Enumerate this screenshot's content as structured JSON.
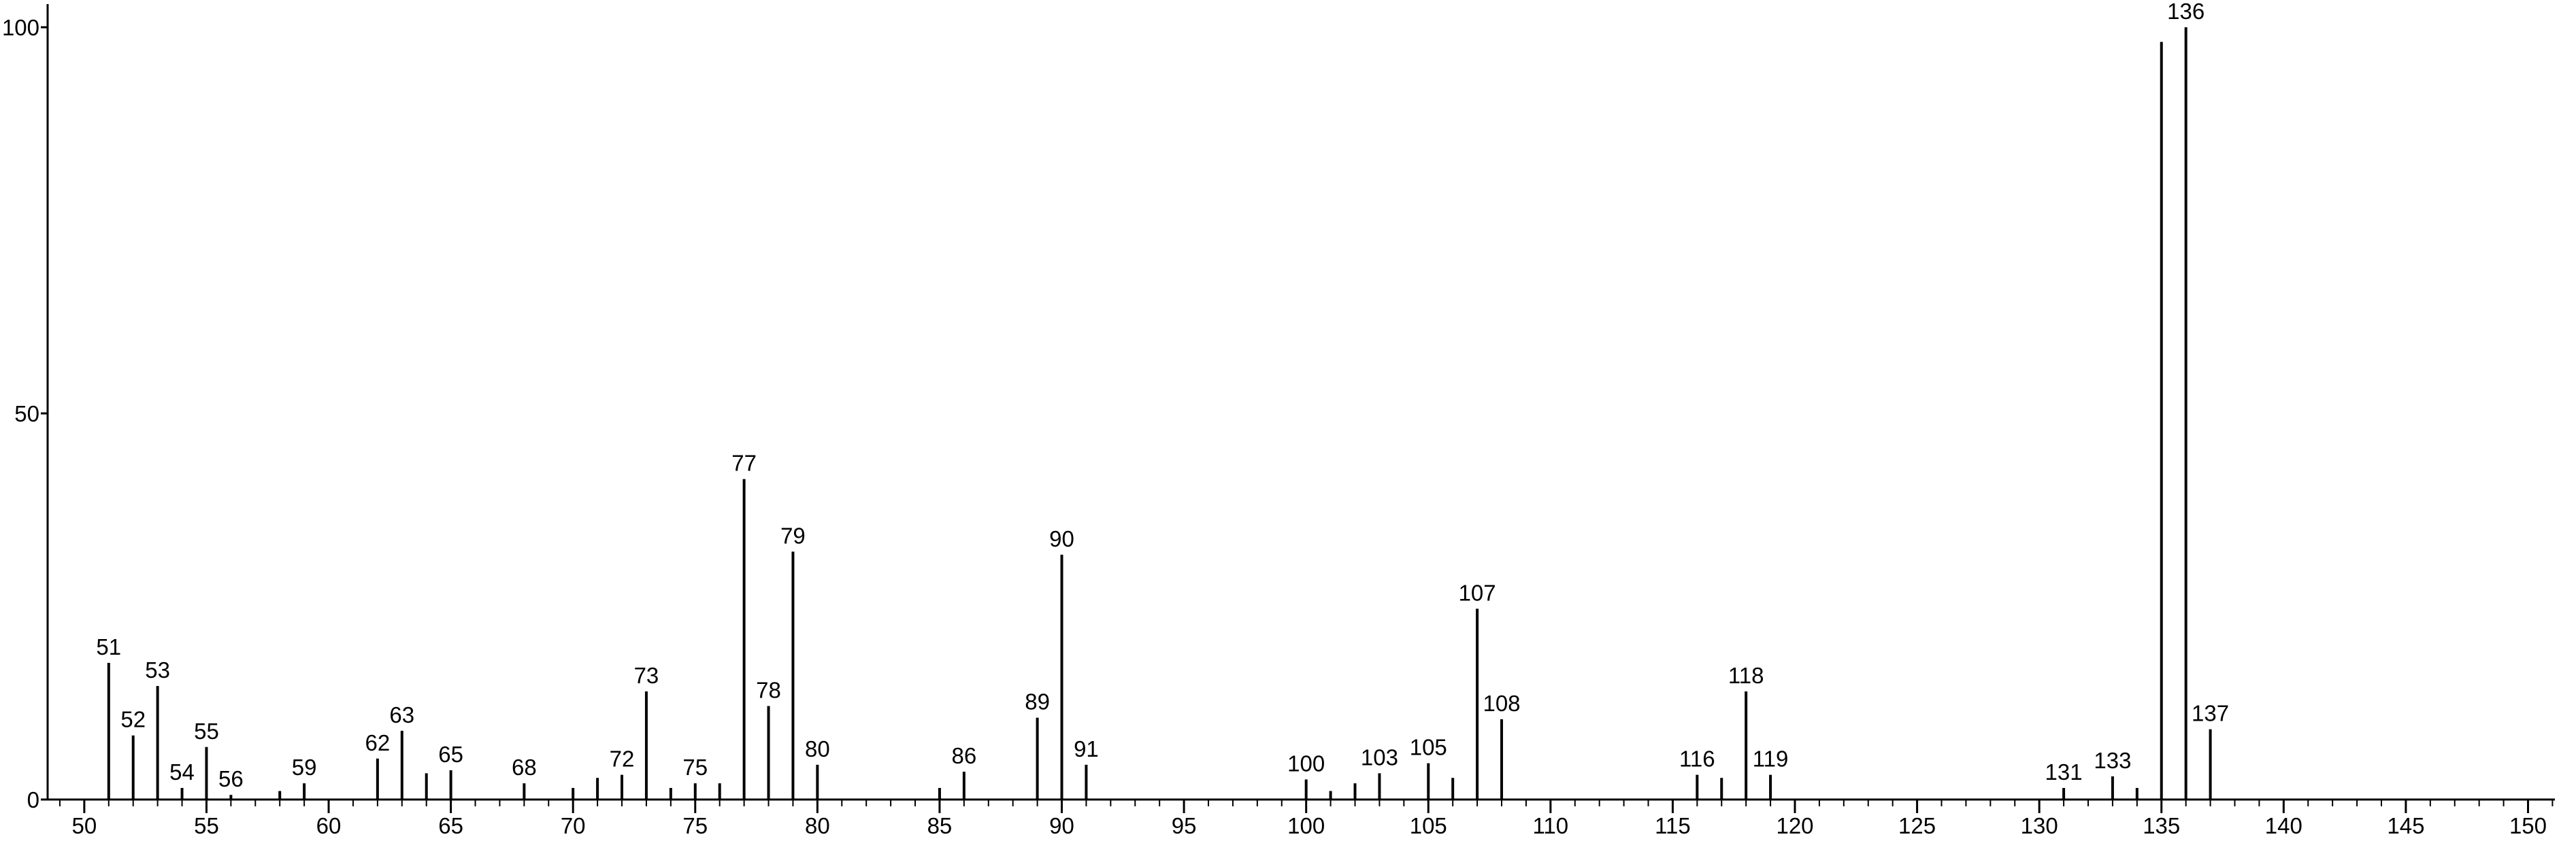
{
  "chart_data": {
    "type": "stick",
    "x": [
      51,
      52,
      53,
      54,
      55,
      56,
      58,
      59,
      62,
      63,
      64,
      65,
      68,
      70,
      71,
      72,
      73,
      74,
      75,
      76,
      77,
      78,
      79,
      80,
      85,
      86,
      89,
      90,
      91,
      100,
      101,
      102,
      103,
      105,
      106,
      107,
      108,
      116,
      117,
      118,
      119,
      131,
      133,
      134,
      135,
      136,
      137
    ],
    "values": [
      17.7,
      8.3,
      14.7,
      1.5,
      6.8,
      0.6,
      1.1,
      2.1,
      5.3,
      8.9,
      3.4,
      3.8,
      2.1,
      1.5,
      2.8,
      3.2,
      14.0,
      1.5,
      2.1,
      2.1,
      41.5,
      12.1,
      32.1,
      4.5,
      1.5,
      3.6,
      10.6,
      31.7,
      4.5,
      2.6,
      1.1,
      2.1,
      3.4,
      4.7,
      2.8,
      24.7,
      10.4,
      3.2,
      2.8,
      14.0,
      3.2,
      1.5,
      3.0,
      1.5,
      98.1,
      100,
      9.1
    ],
    "labels": [
      51,
      52,
      53,
      54,
      55,
      56,
      null,
      59,
      62,
      63,
      null,
      65,
      68,
      null,
      null,
      72,
      73,
      null,
      75,
      null,
      77,
      78,
      79,
      80,
      null,
      86,
      89,
      90,
      91,
      100,
      null,
      null,
      103,
      105,
      null,
      107,
      108,
      116,
      null,
      118,
      119,
      131,
      133,
      null,
      null,
      136,
      137
    ],
    "color": "#000000",
    "xlim": [
      48.5,
      151.1
    ],
    "xticks": [
      50,
      55,
      60,
      65,
      70,
      75,
      80,
      85,
      90,
      95,
      100,
      105,
      110,
      115,
      120,
      125,
      130,
      135,
      140,
      145,
      150
    ],
    "xminorticks": [
      49,
      50,
      51,
      52,
      53,
      54,
      55,
      56,
      57,
      58,
      59,
      60,
      61,
      62,
      63,
      64,
      65,
      66,
      67,
      68,
      69,
      70,
      71,
      72,
      73,
      74,
      75,
      76,
      77,
      78,
      79,
      80,
      81,
      82,
      83,
      84,
      85,
      86,
      87,
      88,
      89,
      90,
      91,
      92,
      93,
      94,
      95,
      96,
      97,
      98,
      99,
      100,
      101,
      102,
      103,
      104,
      105,
      106,
      107,
      108,
      109,
      110,
      111,
      112,
      113,
      114,
      115,
      116,
      117,
      118,
      119,
      120,
      121,
      122,
      123,
      124,
      125,
      126,
      127,
      128,
      129,
      130,
      131,
      132,
      133,
      134,
      135,
      136,
      137,
      138,
      139,
      140,
      141,
      142,
      143,
      144,
      145,
      146,
      147,
      148,
      149,
      150,
      151
    ],
    "ylim": [
      0,
      103
    ],
    "yticks": [
      0,
      50,
      100
    ]
  }
}
